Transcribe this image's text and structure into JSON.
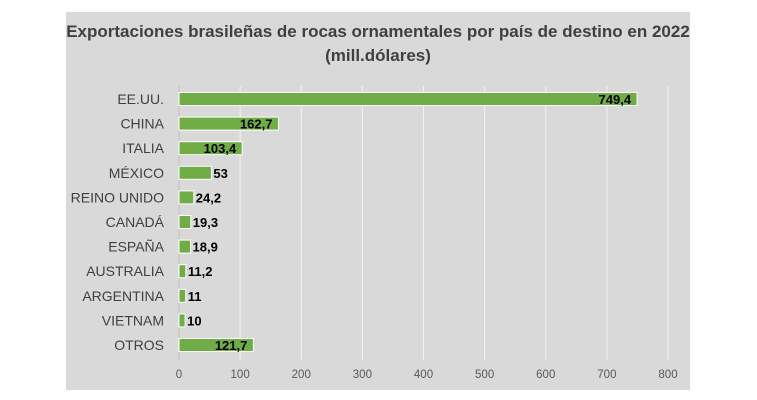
{
  "chart_data": {
    "type": "bar",
    "orientation": "horizontal",
    "title": "Exportaciones brasileñas de rocas ornamentales por país de destino en 2022 (mill.dólares)",
    "categories": [
      "EE.UU.",
      "CHINA",
      "ITALIA",
      "MÉXICO",
      "REINO UNIDO",
      "CANADÁ",
      "ESPAÑA",
      "AUSTRALIA",
      "ARGENTINA",
      "VIETNAM",
      "OTROS"
    ],
    "values": [
      749.4,
      162.7,
      103.4,
      53,
      24.2,
      19.3,
      18.9,
      11.2,
      11,
      10,
      121.7
    ],
    "data_labels": [
      "749,4",
      "162,7",
      "103,4",
      "53",
      "24,2",
      "19,3",
      "18,9",
      "11,2",
      "11",
      "10",
      "121,7"
    ],
    "xlim": [
      0,
      800
    ],
    "xticks": [
      0,
      100,
      200,
      300,
      400,
      500,
      600,
      700,
      800
    ],
    "xlabel": "",
    "ylabel": "",
    "grid": "vertical",
    "legend": "none",
    "bar_color": "#70ad47",
    "bar_edge_color": "#ffffff",
    "background_color": "#d9d9d9"
  }
}
